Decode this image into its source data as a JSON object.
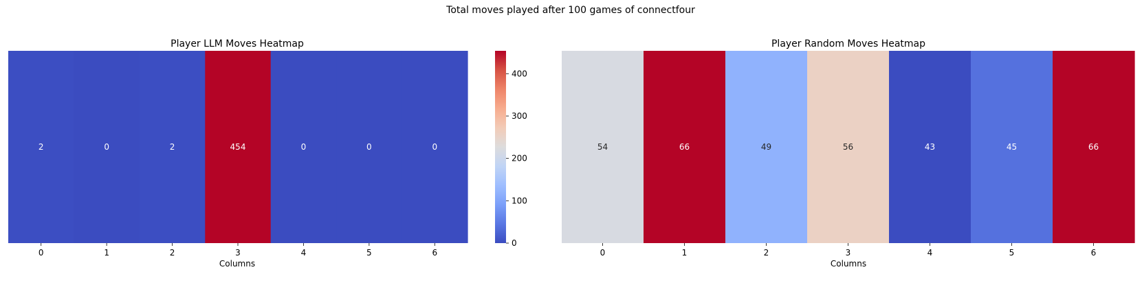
{
  "suptitle": "Total moves played after 100 games of connectfour",
  "colormap": {
    "name": "coolwarm",
    "stops": [
      "#3b4cc0",
      "#5977e3",
      "#7b9ff9",
      "#9ebeff",
      "#c0d4f5",
      "#dddcdc",
      "#f2cbb7",
      "#f7ac8e",
      "#ee8468",
      "#d65244",
      "#b40426"
    ]
  },
  "chart_data": [
    {
      "type": "heatmap",
      "title": "Player LLM Moves Heatmap",
      "xlabel": "Columns",
      "ylabel": "",
      "categories": [
        "0",
        "1",
        "2",
        "3",
        "4",
        "5",
        "6"
      ],
      "values": [
        2,
        0,
        2,
        454,
        0,
        0,
        0
      ],
      "value_range": [
        0,
        454
      ],
      "colorbar": {
        "ticks": [
          0,
          100,
          200,
          300,
          400
        ],
        "ticklabels": [
          "0",
          "100",
          "200",
          "300",
          "400"
        ]
      }
    },
    {
      "type": "heatmap",
      "title": "Player Random Moves Heatmap",
      "xlabel": "Columns",
      "ylabel": "",
      "categories": [
        "0",
        "1",
        "2",
        "3",
        "4",
        "5",
        "6"
      ],
      "values": [
        54,
        66,
        49,
        56,
        43,
        45,
        66
      ],
      "value_range": [
        43,
        66
      ]
    }
  ]
}
